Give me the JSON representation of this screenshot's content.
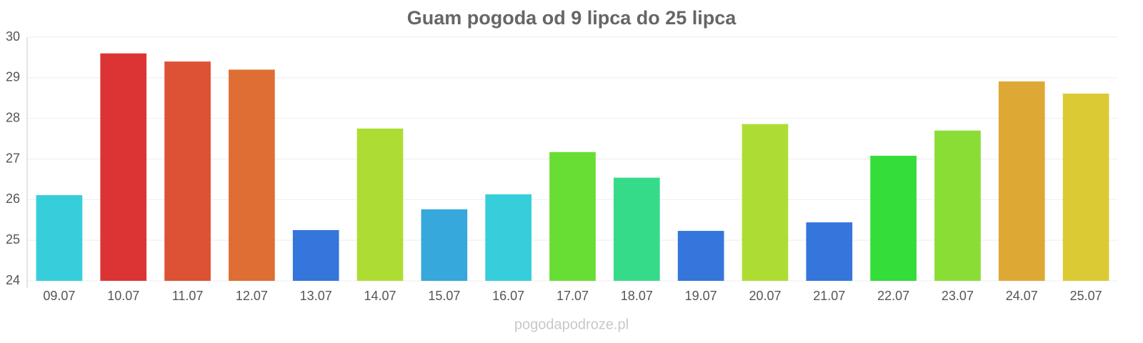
{
  "chart_data": {
    "type": "bar",
    "title": "Guam pogoda od 9 lipca do 25 lipca",
    "categories": [
      "09.07",
      "10.07",
      "11.07",
      "12.07",
      "13.07",
      "14.07",
      "15.07",
      "16.07",
      "17.07",
      "18.07",
      "19.07",
      "20.07",
      "21.07",
      "22.07",
      "23.07",
      "24.07",
      "25.07"
    ],
    "values": [
      26.11,
      29.6,
      29.4,
      29.2,
      25.25,
      27.75,
      25.76,
      26.13,
      27.17,
      26.54,
      25.23,
      27.86,
      25.44,
      27.08,
      27.7,
      28.91,
      28.61
    ],
    "colors": [
      "#36cedb",
      "#dc3434",
      "#dd5134",
      "#de6e34",
      "#3476db",
      "#addd33",
      "#36a8db",
      "#36cedb",
      "#68dd34",
      "#36db8a",
      "#3476db",
      "#addd33",
      "#3476db",
      "#34dd3a",
      "#8add34",
      "#dea834",
      "#dcca34"
    ],
    "ylim": [
      24,
      30
    ],
    "yticks": [
      24,
      25,
      26,
      27,
      28,
      29,
      30
    ],
    "grid": true,
    "source": "pogodapodroze.pl"
  }
}
